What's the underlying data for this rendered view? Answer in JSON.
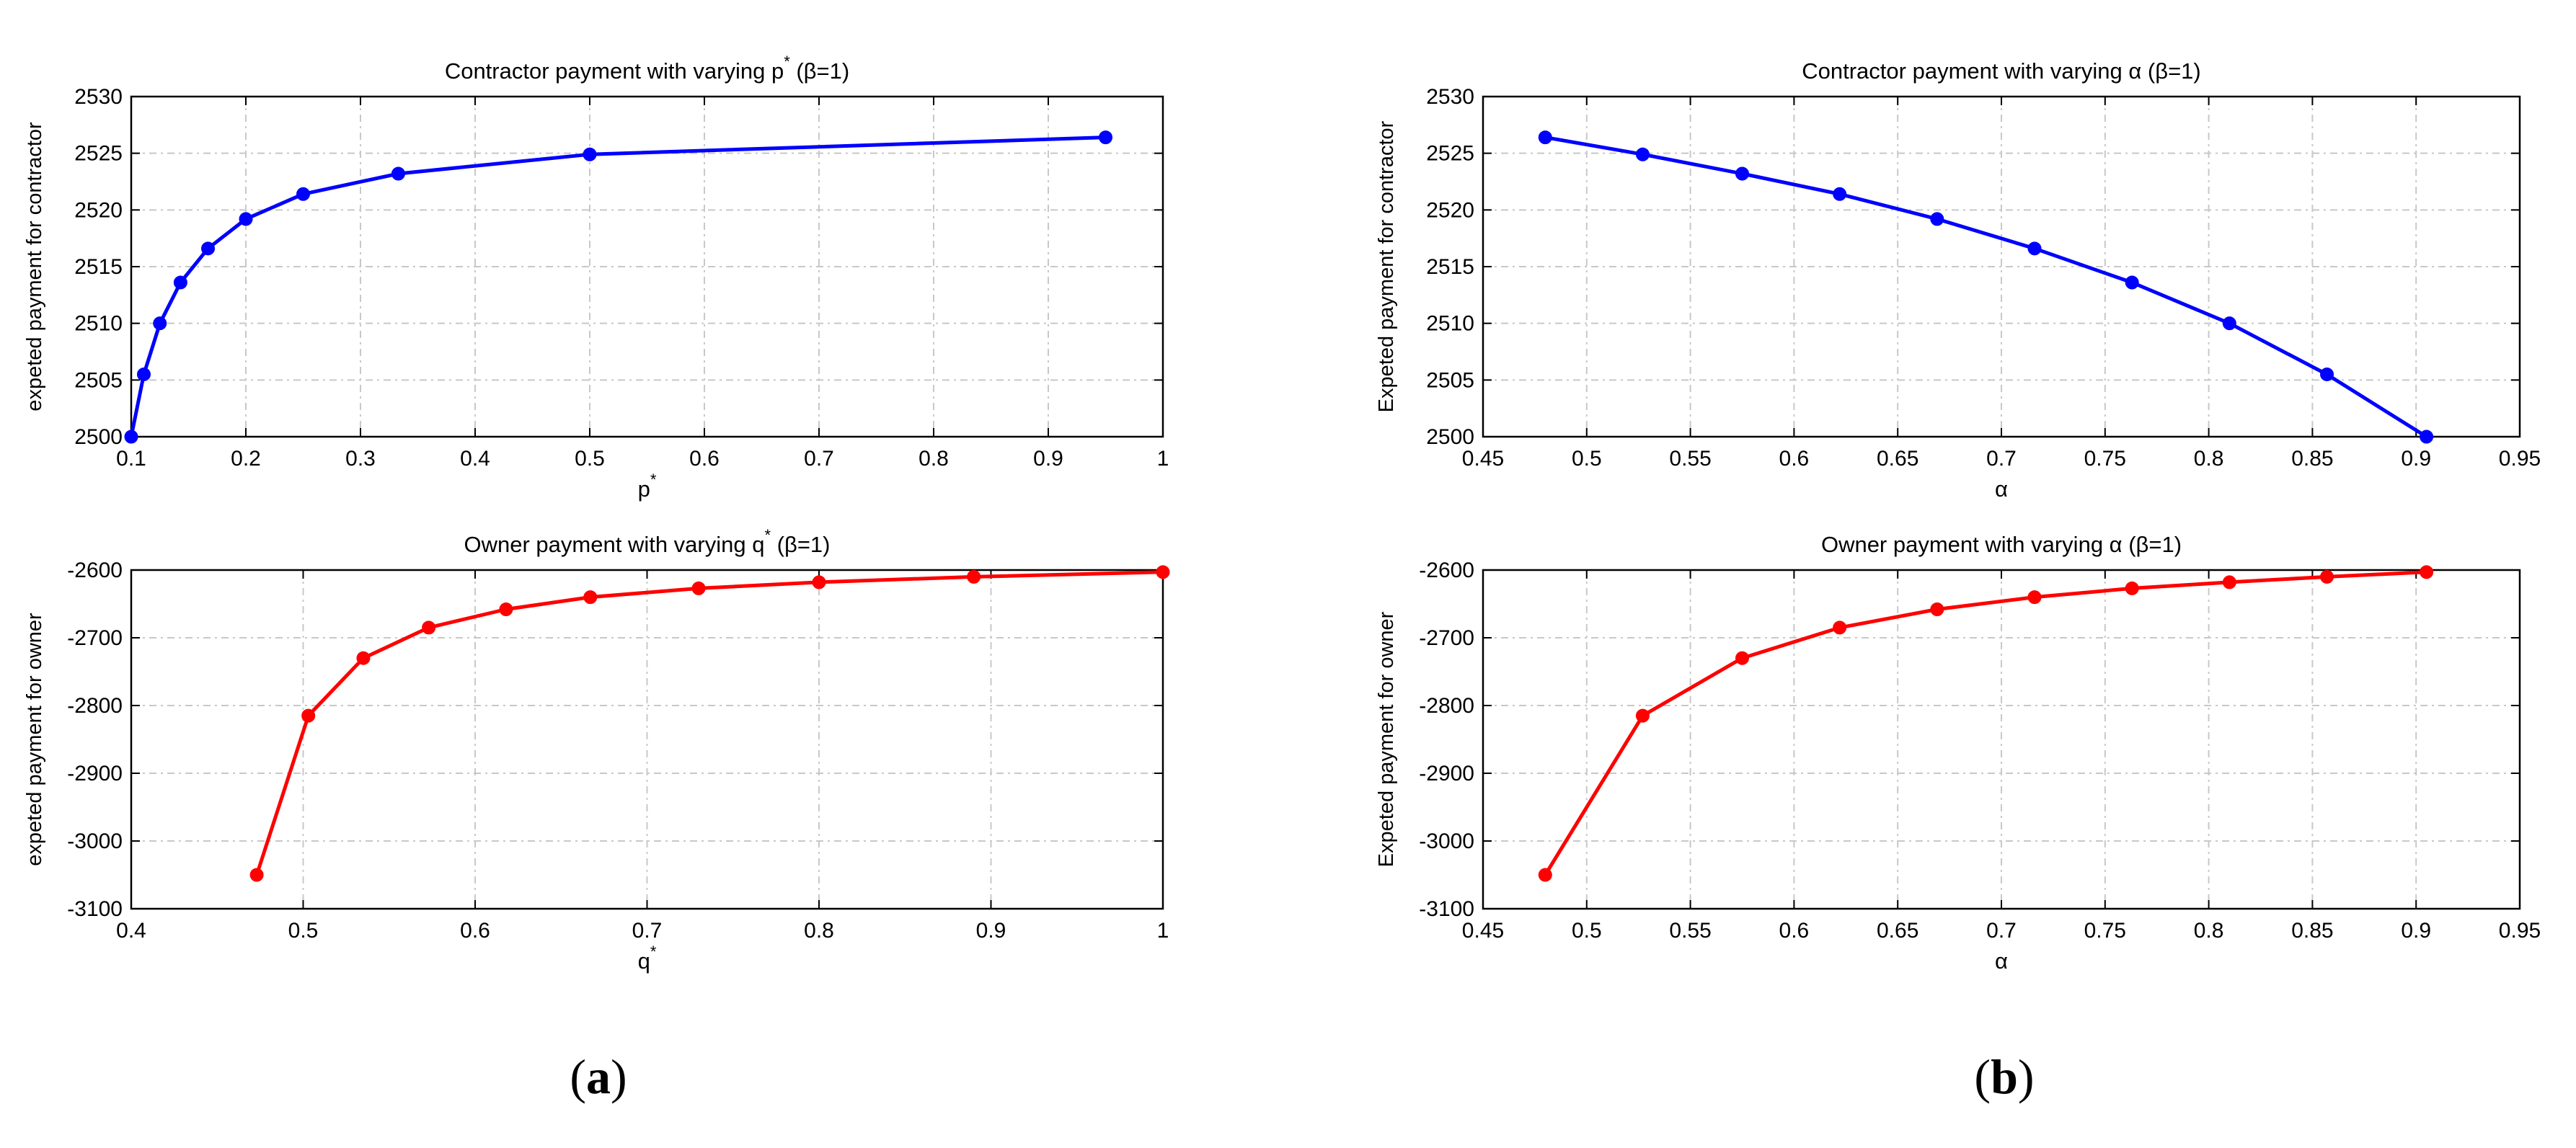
{
  "chart_data": [
    {
      "type": "line",
      "title": "Contractor payment with varying p* (β=1)",
      "title_parts": {
        "before": "Contractor payment with varying p",
        "sup": "*",
        "after": " (β=1)"
      },
      "xlabel": "p*",
      "xlabel_parts": {
        "before": "p",
        "sup": "*",
        "after": ""
      },
      "ylabel": "expeted payment for contractor",
      "xlim": [
        0.1,
        1
      ],
      "ylim": [
        2500,
        2530
      ],
      "xticks": [
        "0.1",
        "0.2",
        "0.3",
        "0.4",
        "0.5",
        "0.6",
        "0.7",
        "0.8",
        "0.9",
        "1"
      ],
      "yticks": [
        "2500",
        "2505",
        "2510",
        "2515",
        "2520",
        "2525",
        "2530"
      ],
      "grid": true,
      "color": "#0000ff",
      "series": [
        {
          "x": [
            0.1,
            0.111,
            0.125,
            0.143,
            0.167,
            0.2,
            0.25,
            0.333,
            0.5,
            0.95
          ],
          "y": [
            2500.0,
            2505.5,
            2510.0,
            2513.6,
            2516.6,
            2519.2,
            2521.4,
            2523.2,
            2524.9,
            2526.4
          ]
        }
      ]
    },
    {
      "type": "line",
      "title": "Contractor payment with varying α (β=1)",
      "title_parts": {
        "before": "Contractor payment with varying α (β=1)",
        "sup": "",
        "after": ""
      },
      "xlabel": "α",
      "xlabel_parts": {
        "before": "α",
        "sup": "",
        "after": ""
      },
      "ylabel": "Expeted payment for contractor",
      "xlim": [
        0.45,
        0.95
      ],
      "ylim": [
        2500,
        2530
      ],
      "xticks": [
        "0.45",
        "0.5",
        "0.55",
        "0.6",
        "0.65",
        "0.7",
        "0.75",
        "0.8",
        "0.85",
        "0.9",
        "0.95"
      ],
      "yticks": [
        "2500",
        "2505",
        "2510",
        "2515",
        "2520",
        "2525",
        "2530"
      ],
      "grid": true,
      "color": "#0000ff",
      "series": [
        {
          "x": [
            0.48,
            0.527,
            0.575,
            0.622,
            0.669,
            0.716,
            0.763,
            0.81,
            0.857,
            0.905
          ],
          "y": [
            2526.4,
            2524.9,
            2523.2,
            2521.4,
            2519.2,
            2516.6,
            2513.6,
            2510.0,
            2505.5,
            2500.0
          ]
        }
      ]
    },
    {
      "type": "line",
      "title": "Owner payment with varying q* (β=1)",
      "title_parts": {
        "before": "Owner payment with varying q",
        "sup": "*",
        "after": " (β=1)"
      },
      "xlabel": "q*",
      "xlabel_parts": {
        "before": "q",
        "sup": "*",
        "after": ""
      },
      "ylabel": "expeted payment for owner",
      "xlim": [
        0.4,
        1
      ],
      "ylim": [
        -3100,
        -2600
      ],
      "xticks": [
        "0.4",
        "0.5",
        "0.6",
        "0.7",
        "0.8",
        "0.9",
        "1"
      ],
      "yticks": [
        "-3100",
        "-3000",
        "-2900",
        "-2800",
        "-2700",
        "-2600"
      ],
      "grid": true,
      "color": "#ff0000",
      "series": [
        {
          "x": [
            0.473,
            0.503,
            0.535,
            0.573,
            0.618,
            0.667,
            0.73,
            0.8,
            0.89,
            1.0
          ],
          "y": [
            -3050,
            -2815,
            -2730,
            -2685,
            -2658,
            -2640,
            -2627,
            -2618,
            -2610,
            -2603
          ]
        }
      ]
    },
    {
      "type": "line",
      "title": "Owner payment with varying α (β=1)",
      "title_parts": {
        "before": "Owner payment with varying α (β=1)",
        "sup": "",
        "after": ""
      },
      "xlabel": "α",
      "xlabel_parts": {
        "before": "α",
        "sup": "",
        "after": ""
      },
      "ylabel": "Expeted payment for owner",
      "xlim": [
        0.45,
        0.95
      ],
      "ylim": [
        -3100,
        -2600
      ],
      "xticks": [
        "0.45",
        "0.5",
        "0.55",
        "0.6",
        "0.65",
        "0.7",
        "0.75",
        "0.8",
        "0.85",
        "0.9",
        "0.95"
      ],
      "yticks": [
        "-3100",
        "-3000",
        "-2900",
        "-2800",
        "-2700",
        "-2600"
      ],
      "grid": true,
      "color": "#ff0000",
      "series": [
        {
          "x": [
            0.48,
            0.527,
            0.575,
            0.622,
            0.669,
            0.716,
            0.763,
            0.81,
            0.857,
            0.905
          ],
          "y": [
            -3050,
            -2815,
            -2730,
            -2685,
            -2658,
            -2640,
            -2627,
            -2618,
            -2610,
            -2603
          ]
        }
      ]
    }
  ],
  "captions": {
    "a": {
      "open": "(",
      "letter": "a",
      "close": ")"
    },
    "b": {
      "open": "(",
      "letter": "b",
      "close": ")"
    }
  }
}
